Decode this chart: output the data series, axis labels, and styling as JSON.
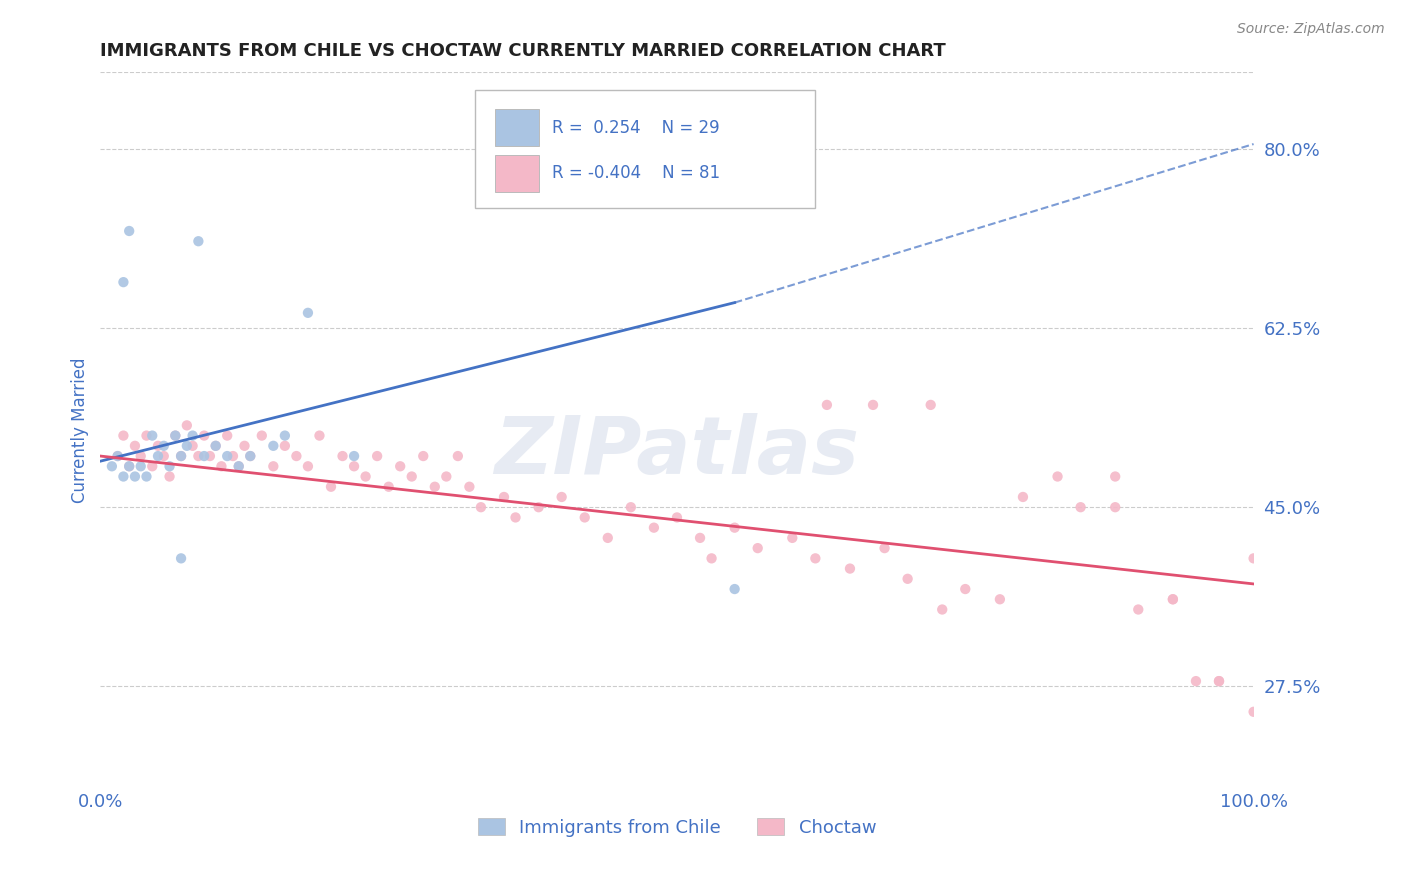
{
  "title": "IMMIGRANTS FROM CHILE VS CHOCTAW CURRENTLY MARRIED CORRELATION CHART",
  "source_text": "Source: ZipAtlas.com",
  "ylabel": "Currently Married",
  "xlim": [
    0.0,
    100.0
  ],
  "ylim": [
    17.5,
    87.5
  ],
  "yticks": [
    27.5,
    45.0,
    62.5,
    80.0
  ],
  "xticks": [
    0.0,
    100.0
  ],
  "xtick_labels": [
    "0.0%",
    "100.0%"
  ],
  "ytick_labels": [
    "27.5%",
    "45.0%",
    "62.5%",
    "80.0%"
  ],
  "blue_color": "#aac4e2",
  "blue_line_color": "#4472c4",
  "pink_color": "#f4b8c8",
  "pink_line_color": "#e05070",
  "legend_label_blue": "Immigrants from Chile",
  "legend_label_pink": "Choctaw",
  "R_blue": 0.254,
  "N_blue": 29,
  "R_pink": -0.404,
  "N_pink": 81,
  "watermark": "ZIPatlas",
  "title_color": "#222222",
  "tick_label_color": "#4472c4",
  "grid_color": "#cccccc",
  "blue_line_x0": 0.0,
  "blue_line_y0": 49.5,
  "blue_line_x1": 55.0,
  "blue_line_y1": 65.0,
  "blue_dash_x0": 55.0,
  "blue_dash_y0": 65.0,
  "blue_dash_x1": 100.0,
  "blue_dash_y1": 80.5,
  "pink_line_x0": 0.0,
  "pink_line_y0": 50.0,
  "pink_line_x1": 100.0,
  "pink_line_y1": 37.5,
  "blue_scatter_x": [
    2.5,
    8.5,
    18.0,
    2.0,
    4.5,
    5.0,
    5.5,
    6.0,
    6.5,
    7.0,
    7.5,
    8.0,
    9.0,
    10.0,
    11.0,
    12.0,
    3.0,
    3.5,
    4.0,
    13.0,
    15.0,
    16.0,
    1.5,
    2.0,
    2.5,
    55.0,
    22.0,
    7.0,
    1.0
  ],
  "blue_scatter_y": [
    72.0,
    71.0,
    64.0,
    67.0,
    52.0,
    50.0,
    51.0,
    49.0,
    52.0,
    50.0,
    51.0,
    52.0,
    50.0,
    51.0,
    50.0,
    49.0,
    48.0,
    49.0,
    48.0,
    50.0,
    51.0,
    52.0,
    50.0,
    48.0,
    49.0,
    37.0,
    50.0,
    40.0,
    49.0
  ],
  "pink_scatter_x": [
    1.5,
    2.0,
    2.5,
    3.0,
    3.5,
    4.0,
    4.5,
    5.0,
    5.5,
    6.0,
    6.5,
    7.0,
    7.5,
    8.0,
    8.5,
    9.0,
    9.5,
    10.0,
    10.5,
    11.0,
    11.5,
    12.0,
    12.5,
    13.0,
    14.0,
    15.0,
    16.0,
    17.0,
    18.0,
    19.0,
    20.0,
    21.0,
    22.0,
    23.0,
    24.0,
    25.0,
    26.0,
    27.0,
    28.0,
    29.0,
    30.0,
    31.0,
    32.0,
    33.0,
    35.0,
    36.0,
    38.0,
    40.0,
    42.0,
    44.0,
    46.0,
    48.0,
    50.0,
    52.0,
    53.0,
    55.0,
    57.0,
    60.0,
    62.0,
    65.0,
    68.0,
    70.0,
    73.0,
    75.0,
    78.0,
    80.0,
    83.0,
    85.0,
    88.0,
    90.0,
    93.0,
    95.0,
    97.0,
    100.0,
    63.0,
    67.0,
    72.0,
    88.0,
    93.0,
    97.0,
    100.0
  ],
  "pink_scatter_y": [
    50.0,
    52.0,
    49.0,
    51.0,
    50.0,
    52.0,
    49.0,
    51.0,
    50.0,
    48.0,
    52.0,
    50.0,
    53.0,
    51.0,
    50.0,
    52.0,
    50.0,
    51.0,
    49.0,
    52.0,
    50.0,
    49.0,
    51.0,
    50.0,
    52.0,
    49.0,
    51.0,
    50.0,
    49.0,
    52.0,
    47.0,
    50.0,
    49.0,
    48.0,
    50.0,
    47.0,
    49.0,
    48.0,
    50.0,
    47.0,
    48.0,
    50.0,
    47.0,
    45.0,
    46.0,
    44.0,
    45.0,
    46.0,
    44.0,
    42.0,
    45.0,
    43.0,
    44.0,
    42.0,
    40.0,
    43.0,
    41.0,
    42.0,
    40.0,
    39.0,
    41.0,
    38.0,
    35.0,
    37.0,
    36.0,
    46.0,
    48.0,
    45.0,
    45.0,
    35.0,
    36.0,
    28.0,
    28.0,
    40.0,
    55.0,
    55.0,
    55.0,
    48.0,
    36.0,
    28.0,
    25.0
  ]
}
